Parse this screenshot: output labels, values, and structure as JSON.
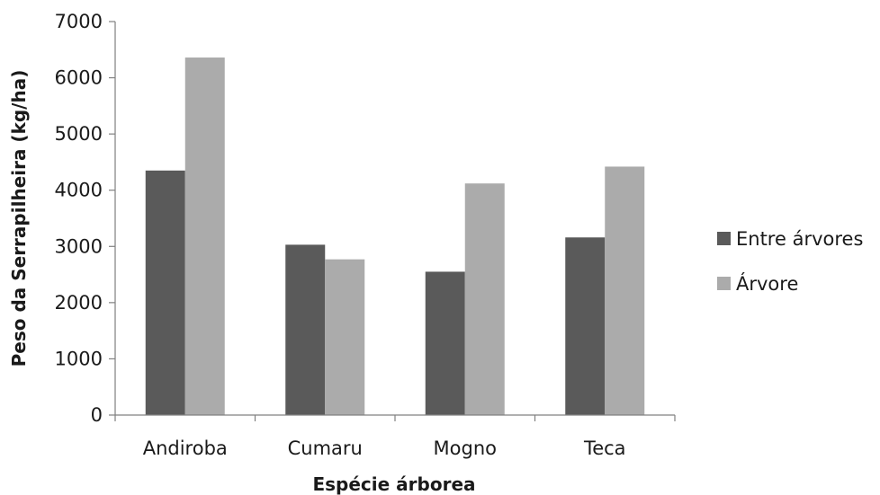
{
  "chart_data": {
    "type": "bar",
    "title": "",
    "xlabel": "Espécie árborea",
    "ylabel": "Peso da Serrapilheira (kg/ha)",
    "categories": [
      "Andiroba",
      "Cumaru",
      "Mogno",
      "Teca"
    ],
    "ylim": [
      0,
      7000
    ],
    "yticks": [
      "0",
      "1000",
      "2000",
      "3000",
      "4000",
      "5000",
      "6000",
      "7000"
    ],
    "grid": false,
    "legend_position": "right",
    "series": [
      {
        "name": "Entre árvores",
        "values": [
          4350,
          3030,
          2550,
          3160
        ],
        "color": "#5a5a5a"
      },
      {
        "name": "Árvore",
        "values": [
          6360,
          2770,
          4120,
          4420
        ],
        "color": "#ababab"
      }
    ]
  }
}
